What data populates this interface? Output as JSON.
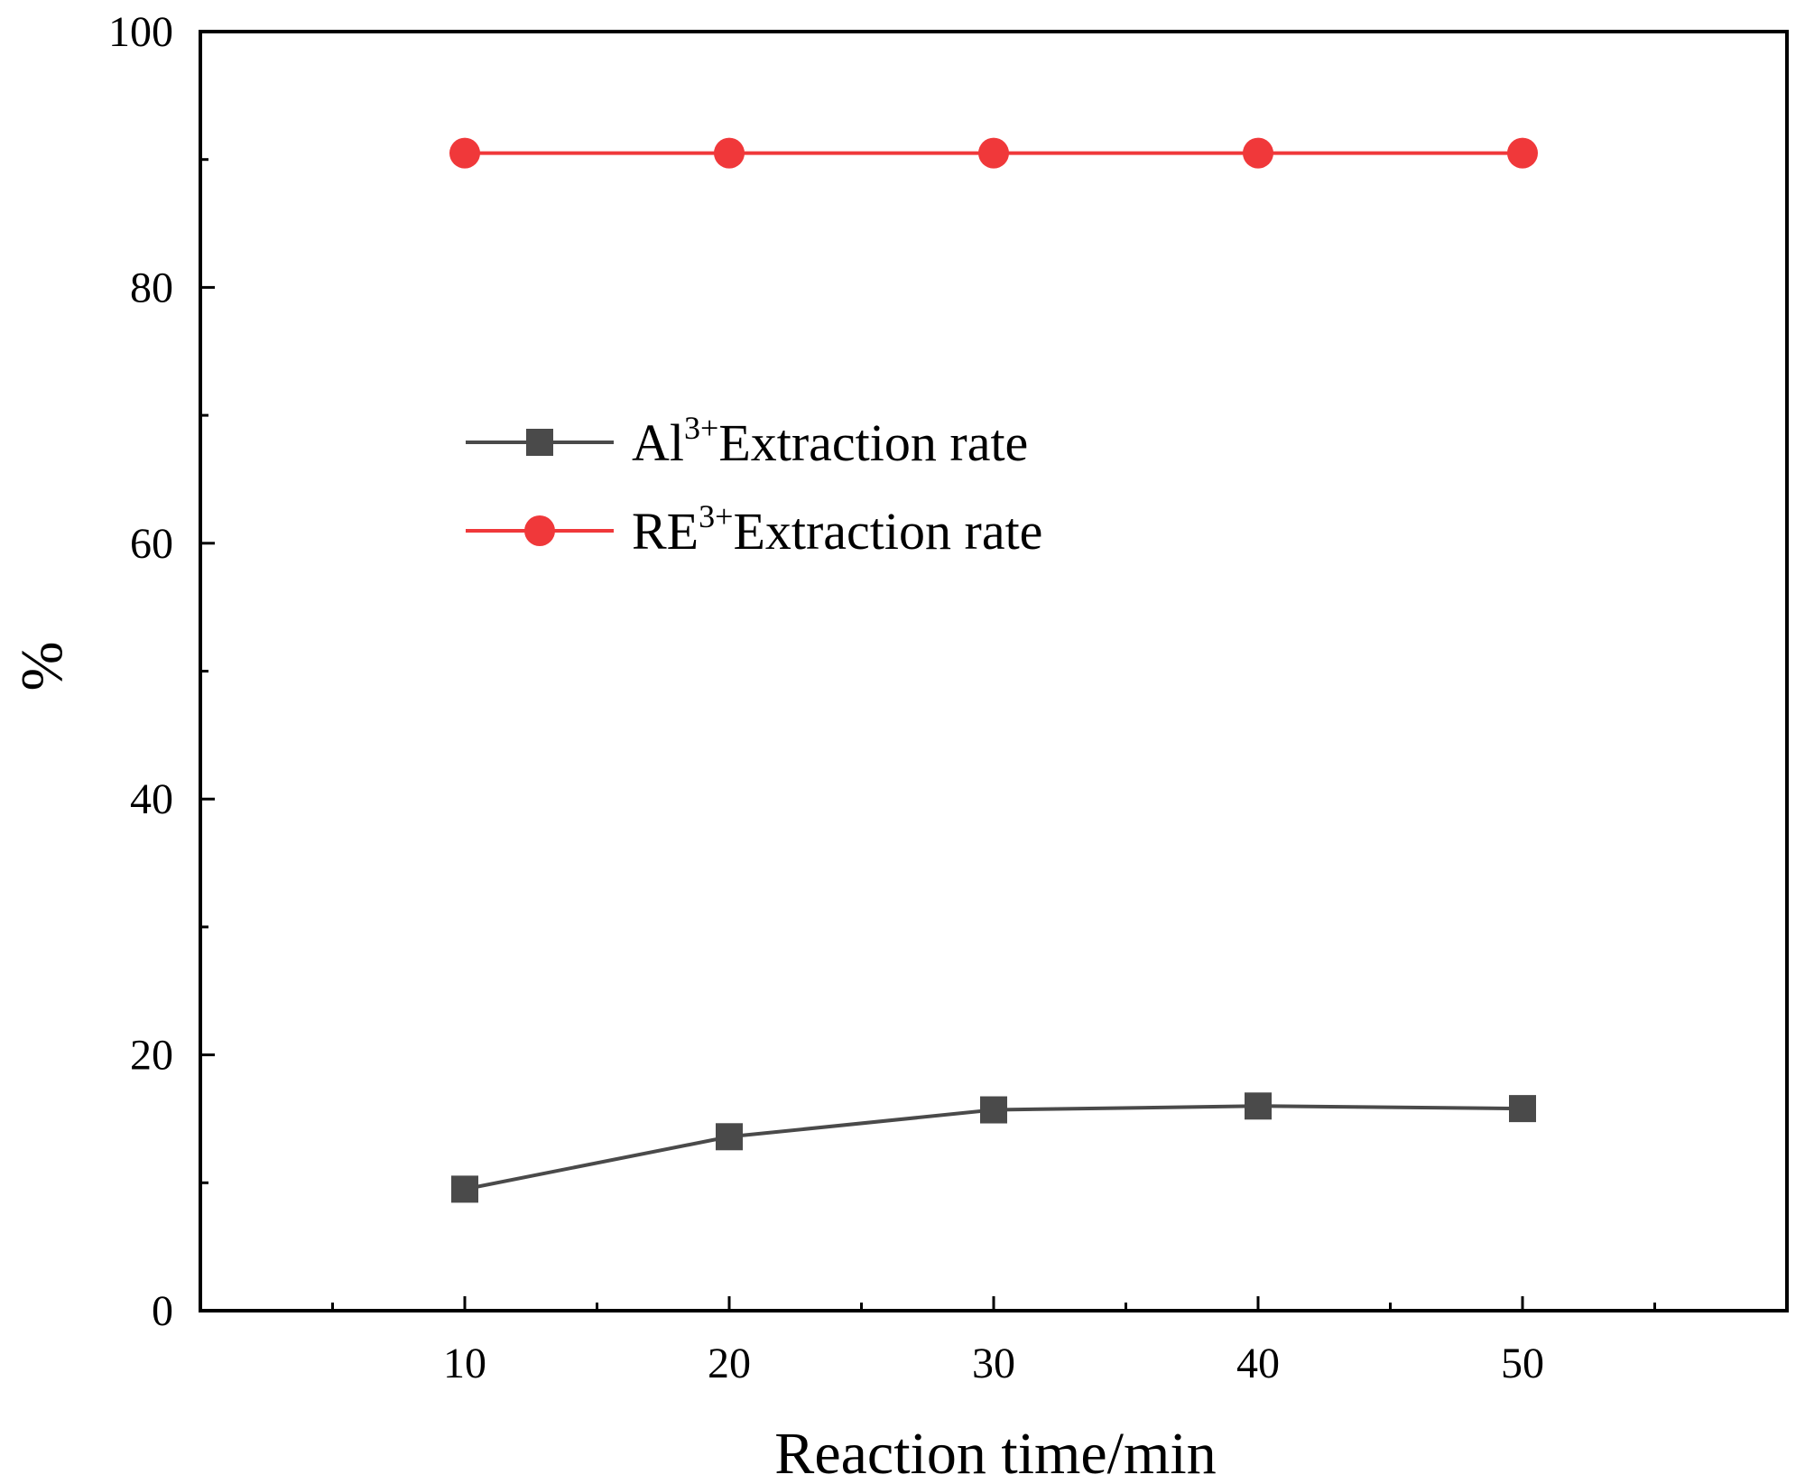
{
  "chart_data": {
    "type": "line",
    "title": "",
    "xlabel": "Reaction time/min",
    "ylabel": "%",
    "xlim": [
      0,
      60
    ],
    "ylim": [
      0,
      100
    ],
    "x": [
      10,
      20,
      30,
      40,
      50
    ],
    "xticks_major": [
      10,
      20,
      30,
      40,
      50
    ],
    "xticks_minor": [
      5,
      15,
      25,
      35,
      45,
      55
    ],
    "yticks_major": [
      0,
      20,
      40,
      60,
      80,
      100
    ],
    "yticks_minor": [
      10,
      30,
      50,
      70,
      90
    ],
    "grid": false,
    "legend_position": "upper-middle",
    "series": [
      {
        "name": "Al3+ Extraction rate",
        "legend_base": "Al",
        "legend_sup": "3+",
        "legend_rest": "Extraction rate",
        "values": [
          9.5,
          13.6,
          15.7,
          16.0,
          15.8
        ],
        "color": "#4a4a4a",
        "marker": "square"
      },
      {
        "name": "RE3+ Extraction rate",
        "legend_base": "RE",
        "legend_sup": "3+",
        "legend_rest": "Extraction rate",
        "values": [
          90.5,
          90.5,
          90.5,
          90.5,
          90.5
        ],
        "color": "#f0383a",
        "marker": "circle"
      }
    ]
  }
}
